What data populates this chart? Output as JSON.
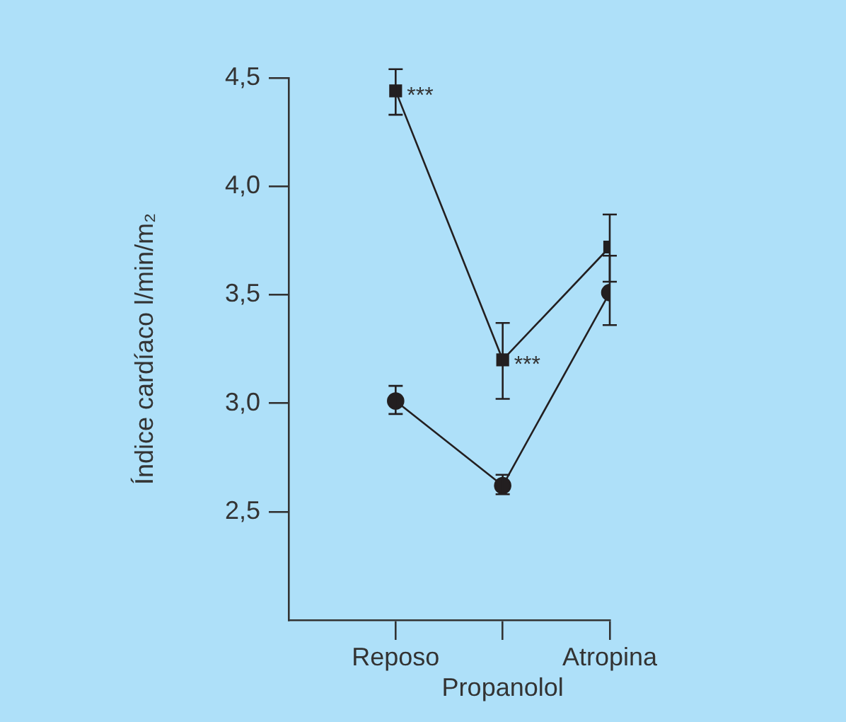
{
  "chart_data": {
    "type": "line",
    "ylabel": "Índice cardíaco l/min/m₂",
    "categories": [
      "Reposo",
      "Propanolol",
      "Atropina"
    ],
    "series": [
      {
        "color": "#231f20",
        "marker": "square",
        "values": [
          4.44,
          3.2,
          3.72
        ],
        "errors": [
          [
            4.33,
            4.54
          ],
          [
            3.02,
            3.37
          ],
          [
            3.56,
            3.87
          ]
        ]
      },
      {
        "color": "#231f20",
        "marker": "circle",
        "values": [
          3.01,
          2.62,
          3.51
        ],
        "errors": [
          [
            2.95,
            3.08
          ],
          [
            2.58,
            2.67
          ],
          [
            3.36,
            3.68
          ]
        ]
      }
    ],
    "ylim": [
      2.0,
      4.5
    ],
    "yticks": [
      {
        "value": 2.5,
        "label": "2,5"
      },
      {
        "value": 3.0,
        "label": "3,0"
      },
      {
        "value": 3.5,
        "label": "3,5"
      },
      {
        "value": 4.0,
        "label": "4,0"
      },
      {
        "value": 4.5,
        "label": "4,5"
      }
    ],
    "annotations": [
      {
        "text": "***",
        "x": "Reposo",
        "y": 4.44
      },
      {
        "text": "***",
        "x": "Propanolol",
        "y": 3.2
      }
    ],
    "grid": false,
    "legend": false
  }
}
